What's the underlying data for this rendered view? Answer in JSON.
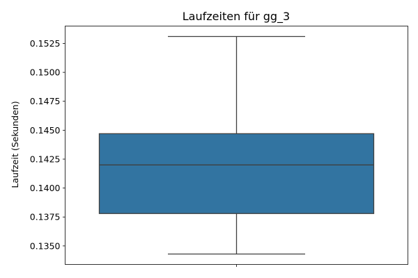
{
  "chart_data": {
    "type": "box",
    "title": "Laufzeiten für gg_3",
    "xlabel": "",
    "ylabel": "Laufzeit (Sekunden)",
    "ylim": [
      0.1334,
      0.154
    ],
    "yticks": [
      "0.1350",
      "0.1375",
      "0.1400",
      "0.1425",
      "0.1450",
      "0.1475",
      "0.1500",
      "0.1525"
    ],
    "grid": false,
    "box": {
      "whisker_low": 0.1343,
      "q1": 0.1378,
      "median": 0.142,
      "q3": 0.1447,
      "whisker_high": 0.1531
    },
    "colors": {
      "box_fill": "#3274a1",
      "line": "#3f3f3f"
    }
  }
}
